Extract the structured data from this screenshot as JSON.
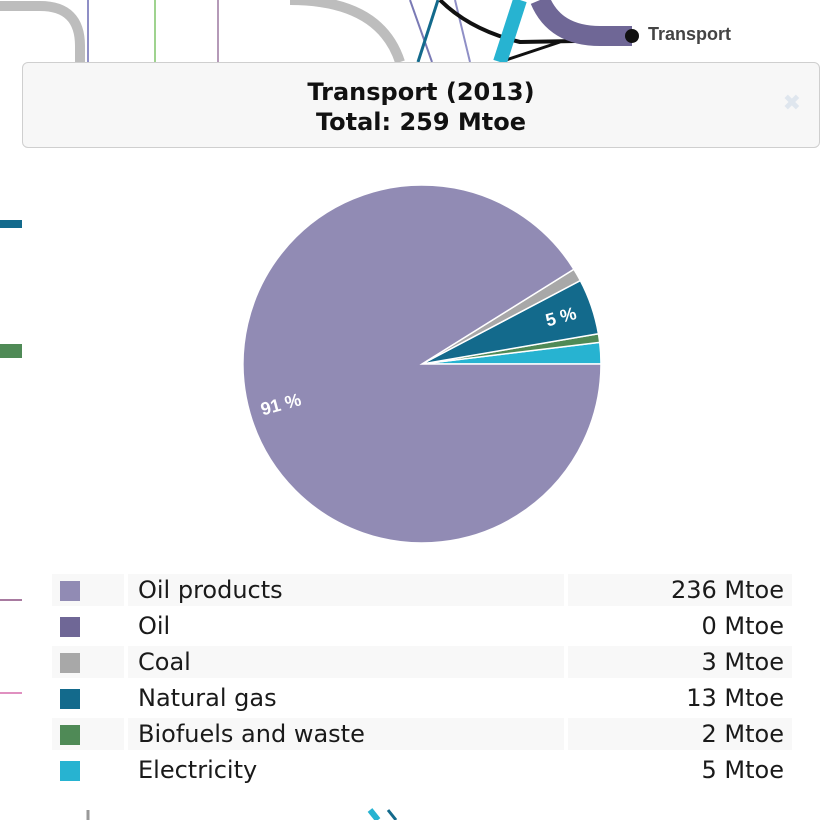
{
  "sankey": {
    "node_label": "Transport"
  },
  "popup": {
    "title": "Transport (2013)",
    "total": "Total: 259 Mtoe",
    "close_icon": "close-icon"
  },
  "colors": {
    "oil_products": "#918bb4",
    "oil": "#6f6796",
    "coal": "#a8a8a8",
    "natural_gas": "#136a8c",
    "biofuels": "#4f8a56",
    "electricity": "#27b3d1"
  },
  "chart_data": {
    "type": "pie",
    "unit": "Mtoe",
    "slices": [
      {
        "label": "Oil products",
        "value": 236,
        "color": "#918bb4",
        "pct_label": "91 %"
      },
      {
        "label": "Oil",
        "value": 0,
        "color": "#6f6796",
        "pct_label": ""
      },
      {
        "label": "Coal",
        "value": 3,
        "color": "#a8a8a8",
        "pct_label": ""
      },
      {
        "label": "Natural gas",
        "value": 13,
        "color": "#136a8c",
        "pct_label": "5 %"
      },
      {
        "label": "Biofuels and waste",
        "value": 2,
        "color": "#4f8a56",
        "pct_label": ""
      },
      {
        "label": "Electricity",
        "value": 5,
        "color": "#27b3d1",
        "pct_label": ""
      }
    ],
    "legend": [
      {
        "name": "Oil products",
        "value": "236 Mtoe"
      },
      {
        "name": "Oil",
        "value": "0 Mtoe"
      },
      {
        "name": "Coal",
        "value": "3 Mtoe"
      },
      {
        "name": "Natural gas",
        "value": "13 Mtoe"
      },
      {
        "name": "Biofuels and waste",
        "value": "2 Mtoe"
      },
      {
        "name": "Electricity",
        "value": "5 Mtoe"
      }
    ]
  }
}
